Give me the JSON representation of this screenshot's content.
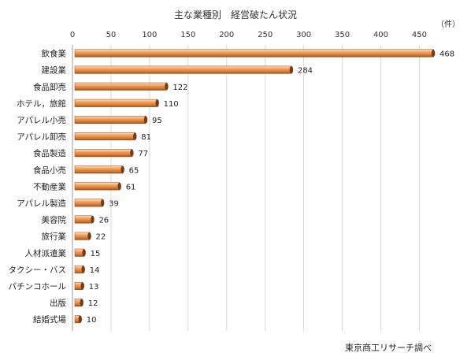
{
  "chart_data": {
    "type": "bar",
    "orientation": "horizontal",
    "title": "主な業種別　経営破たん状況",
    "unit_label": "（件）",
    "source": "東京商工リサーチ調べ",
    "xlim": [
      0,
      470
    ],
    "xticks": [
      0,
      50,
      100,
      150,
      200,
      250,
      300,
      350,
      400,
      450
    ],
    "grid": true,
    "categories": [
      "飲食業",
      "建設業",
      "食品卸売",
      "ホテル，旅館",
      "アパレル小売",
      "アパレル卸売",
      "食品製造",
      "食品小売",
      "不動産業",
      "アパレル製造",
      "美容院",
      "旅行業",
      "人材派遣業",
      "タクシー・バス",
      "パチンコホール",
      "出版",
      "結婚式場"
    ],
    "values": [
      468,
      284,
      122,
      110,
      95,
      81,
      77,
      65,
      61,
      39,
      26,
      22,
      15,
      14,
      13,
      12,
      10
    ],
    "data_labels": [
      "468",
      "284",
      "122",
      "110",
      "95",
      "81",
      "77",
      "65",
      "61",
      "39",
      "26",
      "22",
      "15",
      "14",
      "13",
      "12",
      "10"
    ],
    "bar_color": "#e8954a"
  }
}
